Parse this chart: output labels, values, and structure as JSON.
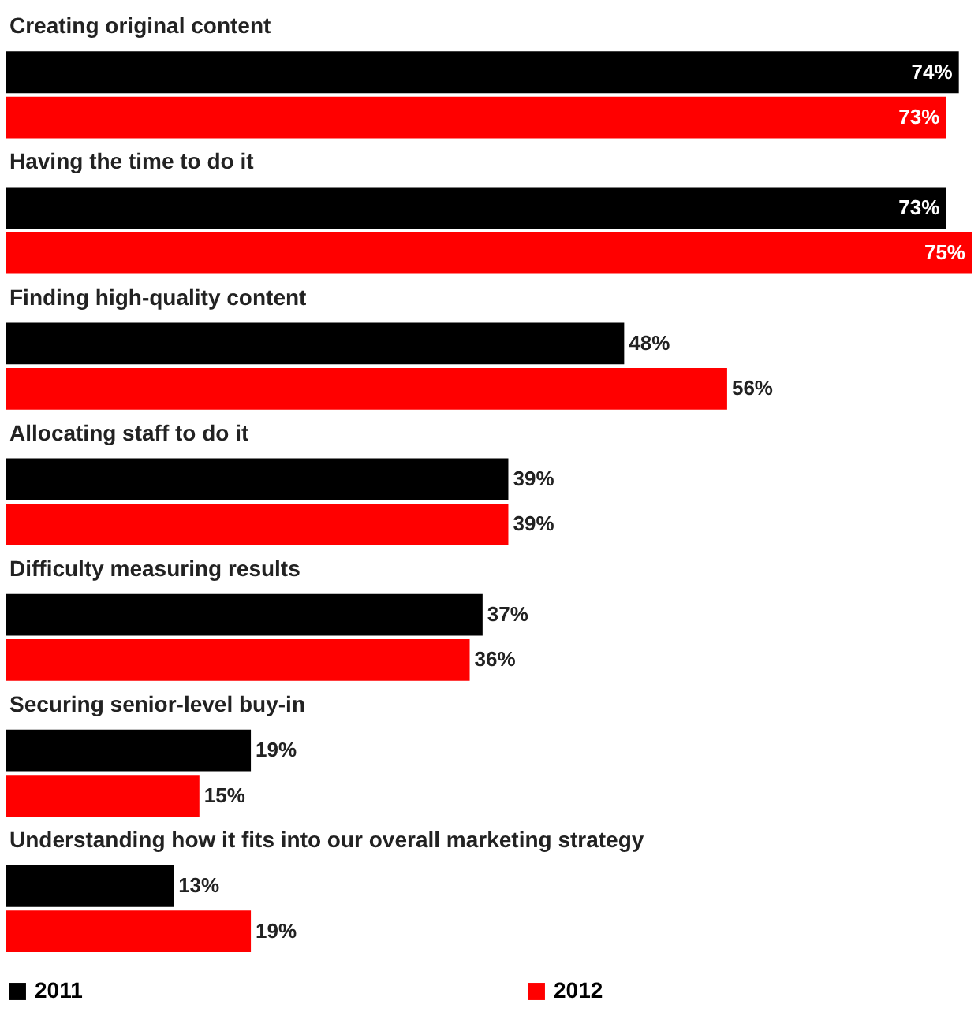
{
  "chart_data": {
    "type": "bar",
    "orientation": "horizontal",
    "categories": [
      "Creating original content",
      "Having the time to do it",
      "Finding high-quality content",
      "Allocating staff to do it",
      "Difficulty measuring results",
      "Securing senior-level buy-in",
      "Understanding how it fits into our overall marketing strategy"
    ],
    "series": [
      {
        "name": "2011",
        "color": "#000000",
        "values": [
          74,
          73,
          48,
          39,
          37,
          19,
          13
        ],
        "value_labels": [
          "74%",
          "73%",
          "48%",
          "39%",
          "37%",
          "19%",
          "13%"
        ]
      },
      {
        "name": "2012",
        "color": "#ff0000",
        "values": [
          73,
          75,
          56,
          39,
          36,
          15,
          19
        ],
        "value_labels": [
          "73%",
          "75%",
          "56%",
          "39%",
          "36%",
          "15%",
          "19%"
        ]
      }
    ],
    "legend": "bottom"
  }
}
